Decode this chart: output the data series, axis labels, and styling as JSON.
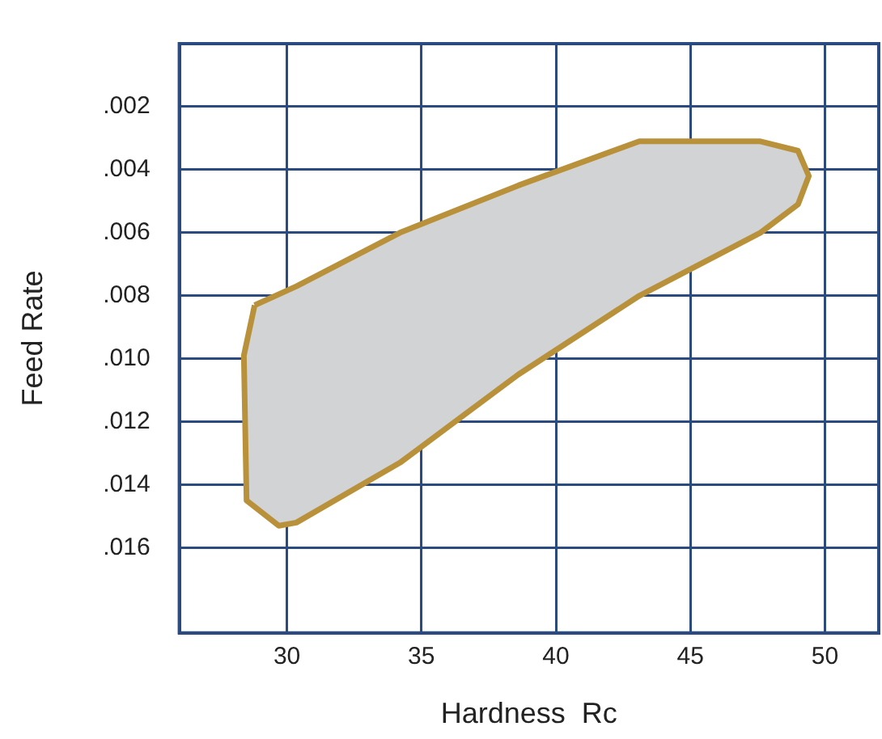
{
  "chart_data": {
    "type": "area",
    "xlabel": "Hardness  Rc",
    "ylabel": "Feed Rate",
    "xlim": [
      26,
      52
    ],
    "xticks": [
      30,
      35,
      40,
      45,
      50
    ],
    "ylim": [
      0.0187,
      0
    ],
    "yticks": [
      {
        "value": 0.002,
        "label": ".002"
      },
      {
        "value": 0.004,
        "label": ".004"
      },
      {
        "value": 0.006,
        "label": ".006"
      },
      {
        "value": 0.008,
        "label": ".008"
      },
      {
        "value": 0.01,
        "label": ".010"
      },
      {
        "value": 0.012,
        "label": ".012"
      },
      {
        "value": 0.014,
        "label": ".014"
      },
      {
        "value": 0.016,
        "label": ".016"
      }
    ],
    "grid": true,
    "legend": false,
    "series": [
      {
        "color": "#b8913a",
        "x": [
          28.8,
          30.35,
          34.2,
          38.6,
          43.1,
          47.6,
          49.0,
          49.4,
          49.0,
          47.6,
          43.1,
          38.6,
          34.2,
          30.35,
          29.7,
          28.5,
          28.4
        ],
        "values": [
          0.0083,
          0.0077,
          0.006,
          0.0045,
          0.0031,
          0.0031,
          0.0034,
          0.0042,
          0.0051,
          0.006,
          0.008,
          0.0105,
          0.0133,
          0.0152,
          0.0153,
          0.0145,
          0.0099
        ]
      }
    ]
  }
}
